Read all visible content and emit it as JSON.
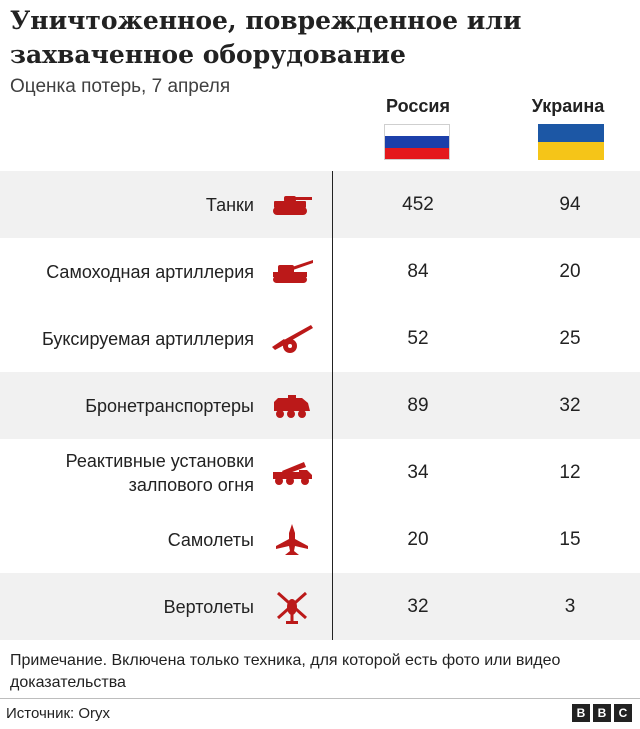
{
  "title": "Уничтоженное, поврежденное или захваченное оборудование",
  "subtitle": "Оценка потерь, 7 апреля",
  "columns": {
    "russia": "Россия",
    "ukraine": "Украина"
  },
  "flags": {
    "russia": [
      "#ffffff",
      "#1c3faa",
      "#e4181c"
    ],
    "ukraine": [
      "#1c57a5",
      "#f5c518"
    ]
  },
  "colors": {
    "icon": "#bb1919",
    "row_shade": "#f1f1f1",
    "text": "#222222"
  },
  "rows": [
    {
      "label": "Танки",
      "icon": "tank-icon"
    },
    {
      "label": "Самоходная артиллерия",
      "icon": "self-propelled-artillery-icon"
    },
    {
      "label": "Буксируемая артиллерия",
      "icon": "towed-artillery-icon"
    },
    {
      "label": "Бронетранспортеры",
      "icon": "armored-personnel-carrier-icon"
    },
    {
      "label": "Реактивные установки залпового огня",
      "icon": "rocket-launcher-truck-icon"
    },
    {
      "label": "Самолеты",
      "icon": "fighter-jet-icon"
    },
    {
      "label": "Вертолеты",
      "icon": "helicopter-icon"
    }
  ],
  "chart_data": {
    "type": "table",
    "title": "Уничтоженное, поврежденное или захваченное оборудование",
    "subtitle": "Оценка потерь, 7 апреля",
    "categories": [
      "Танки",
      "Самоходная артиллерия",
      "Буксируемая артиллерия",
      "Бронетранспортеры",
      "Реактивные установки залпового огня",
      "Самолеты",
      "Вертолеты"
    ],
    "series": [
      {
        "name": "Россия",
        "values": [
          452,
          84,
          52,
          89,
          34,
          20,
          32
        ]
      },
      {
        "name": "Украина",
        "values": [
          94,
          20,
          25,
          32,
          12,
          15,
          3
        ]
      }
    ]
  },
  "note": "Примечание. Включена только техника, для которой есть фото или видео доказательства",
  "source": "Источник: Oryx",
  "logo": [
    "B",
    "B",
    "C"
  ]
}
